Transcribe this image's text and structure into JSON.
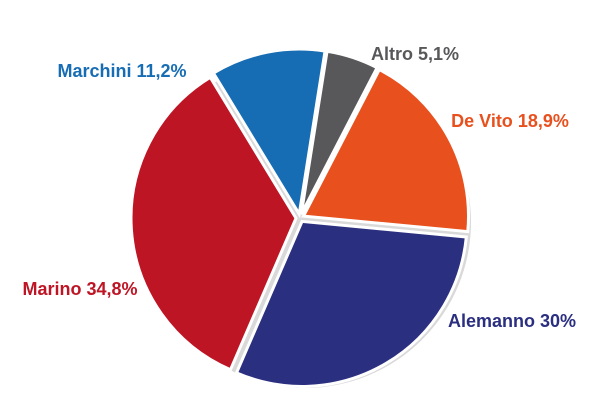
{
  "chart_data": {
    "type": "pie",
    "categories": [
      "Altro",
      "De Vito",
      "Alemanno",
      "Marino",
      "Marchini"
    ],
    "values": [
      5.1,
      18.9,
      30,
      34.8,
      11.2
    ],
    "value_labels": [
      "5,1%",
      "18,9%",
      "30%",
      "34,8%",
      "11,2%"
    ],
    "colors": [
      "#58585a",
      "#e8501e",
      "#2b2f80",
      "#be1525",
      "#176db4"
    ]
  }
}
